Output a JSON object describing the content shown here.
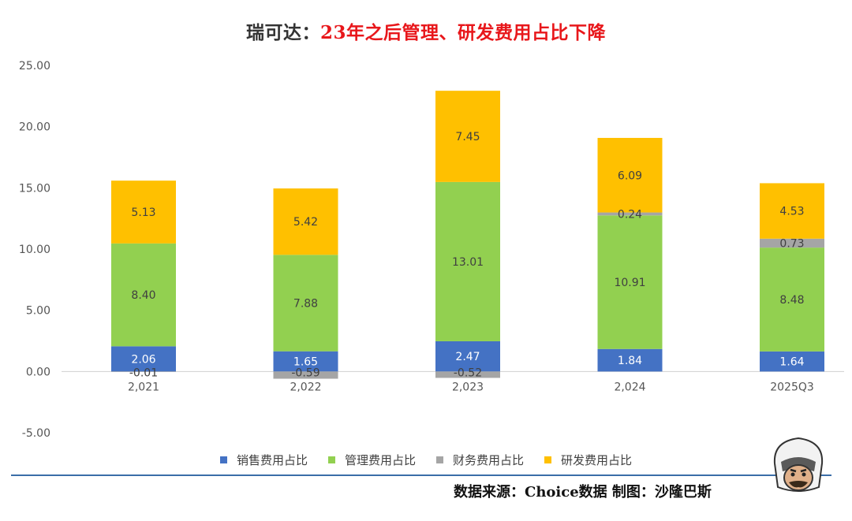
{
  "title": {
    "prefix": "瑞可达：",
    "main": "23年之后管理、研发费用占比下降"
  },
  "source_text": "数据来源：Choice数据   制图：沙隆巴斯",
  "colors": {
    "销售": "#4472c4",
    "管理": "#92d050",
    "财务": "#a5a5a5",
    "研发": "#ffc000"
  },
  "chart_data": {
    "type": "bar",
    "stacked": true,
    "title": "瑞可达：23年之后管理、研发费用占比下降",
    "xlabel": "",
    "ylabel": "",
    "ylim": [
      -5,
      25
    ],
    "yticks": [
      -5,
      0,
      5,
      10,
      15,
      20,
      25
    ],
    "ytick_labels": [
      "-5.00",
      "0.00",
      "5.00",
      "10.00",
      "15.00",
      "20.00",
      "25.00"
    ],
    "grid": false,
    "legend_position": "bottom",
    "categories": [
      "2,021",
      "2,022",
      "2,023",
      "2,024",
      "2025Q3"
    ],
    "series": [
      {
        "name": "销售费用占比",
        "color": "#4472c4",
        "values": [
          2.06,
          1.65,
          2.47,
          1.84,
          1.64
        ],
        "labels": [
          "2.06",
          "1.65",
          "2.47",
          "1.84",
          "1.64"
        ]
      },
      {
        "name": "管理费用占比",
        "color": "#92d050",
        "values": [
          8.4,
          7.88,
          13.01,
          10.91,
          8.48
        ],
        "labels": [
          "8.40",
          "7.88",
          "13.01",
          "10.91",
          "8.48"
        ]
      },
      {
        "name": "财务费用占比",
        "color": "#a5a5a5",
        "values": [
          -0.01,
          -0.59,
          -0.52,
          0.24,
          0.73
        ],
        "labels": [
          "-0.01",
          "-0.59",
          "-0.52",
          "0.24",
          "0.73"
        ]
      },
      {
        "name": "研发费用占比",
        "color": "#ffc000",
        "values": [
          5.13,
          5.42,
          7.45,
          6.09,
          4.53
        ],
        "labels": [
          "5.13",
          "5.42",
          "7.45",
          "6.09",
          "4.53"
        ]
      }
    ]
  }
}
